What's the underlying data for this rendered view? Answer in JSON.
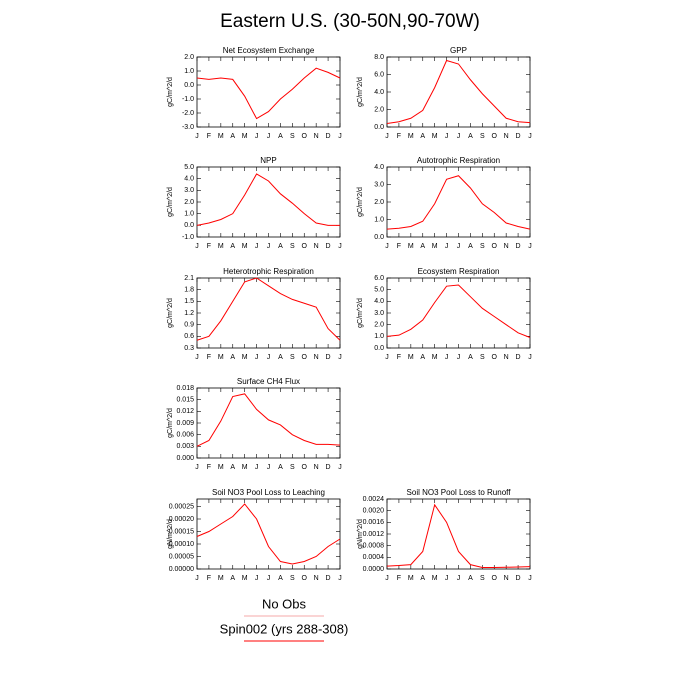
{
  "title": "Eastern U.S. (30-50N,90-70W)",
  "legend": [
    {
      "name": "No Obs",
      "color": "#f6a8a8"
    },
    {
      "name": "Spin002 (yrs 288-308)",
      "color": "#ff0000"
    }
  ],
  "chart_data": [
    {
      "type": "line",
      "title": "Net Ecosystem Exchange",
      "y_label": "gC/m^2/d",
      "categories": [
        "J",
        "F",
        "M",
        "A",
        "M",
        "J",
        "J",
        "A",
        "S",
        "O",
        "N",
        "D",
        "J"
      ],
      "series": [
        {
          "color": "#ff0000",
          "values": [
            0.5,
            0.4,
            0.5,
            0.4,
            -0.8,
            -2.4,
            -1.9,
            -1.0,
            -0.3,
            0.5,
            1.2,
            0.9,
            0.5
          ]
        }
      ],
      "ylim": [
        -3,
        2
      ],
      "yticks": [
        {
          "value": -3,
          "label": "-3.0"
        },
        {
          "value": -2,
          "label": "-2.0"
        },
        {
          "value": -1,
          "label": "-1.0"
        },
        {
          "value": 0,
          "label": "0.0"
        },
        {
          "value": 1,
          "label": "1.0"
        },
        {
          "value": 2,
          "label": "2.0"
        }
      ]
    },
    {
      "type": "line",
      "title": "GPP",
      "y_label": "gC/m^2/d",
      "categories": [
        "J",
        "F",
        "M",
        "A",
        "M",
        "J",
        "J",
        "A",
        "S",
        "O",
        "N",
        "D",
        "J"
      ],
      "series": [
        {
          "color": "#ff0000",
          "values": [
            0.4,
            0.6,
            1.0,
            1.9,
            4.5,
            7.6,
            7.2,
            5.4,
            3.8,
            2.4,
            1.0,
            0.6,
            0.5
          ]
        }
      ],
      "ylim": [
        0,
        8
      ],
      "yticks": [
        {
          "value": 0,
          "label": "0.0"
        },
        {
          "value": 2,
          "label": "2.0"
        },
        {
          "value": 4,
          "label": "4.0"
        },
        {
          "value": 6,
          "label": "6.0"
        },
        {
          "value": 8,
          "label": "8.0"
        }
      ]
    },
    {
      "type": "line",
      "title": "NPP",
      "y_label": "gC/m^2/d",
      "categories": [
        "J",
        "F",
        "M",
        "A",
        "M",
        "J",
        "J",
        "A",
        "S",
        "O",
        "N",
        "D",
        "J"
      ],
      "series": [
        {
          "color": "#ff0000",
          "values": [
            0.0,
            0.2,
            0.5,
            1.0,
            2.6,
            4.4,
            3.8,
            2.7,
            1.9,
            1.0,
            0.2,
            0.0,
            0.0
          ]
        }
      ],
      "ylim": [
        -1,
        5
      ],
      "yticks": [
        {
          "value": -1,
          "label": "-1.0"
        },
        {
          "value": 0,
          "label": "0.0"
        },
        {
          "value": 1,
          "label": "1.0"
        },
        {
          "value": 2,
          "label": "2.0"
        },
        {
          "value": 3,
          "label": "3.0"
        },
        {
          "value": 4,
          "label": "4.0"
        },
        {
          "value": 5,
          "label": "5.0"
        }
      ]
    },
    {
      "type": "line",
      "title": "Autotrophic Respiration",
      "y_label": "gC/m^2/d",
      "categories": [
        "J",
        "F",
        "M",
        "A",
        "M",
        "J",
        "J",
        "A",
        "S",
        "O",
        "N",
        "D",
        "J"
      ],
      "series": [
        {
          "color": "#ff0000",
          "values": [
            0.45,
            0.5,
            0.6,
            0.9,
            1.9,
            3.3,
            3.5,
            2.8,
            1.9,
            1.4,
            0.8,
            0.6,
            0.45
          ]
        }
      ],
      "ylim": [
        0,
        4
      ],
      "yticks": [
        {
          "value": 0,
          "label": "0.0"
        },
        {
          "value": 1,
          "label": "1.0"
        },
        {
          "value": 2,
          "label": "2.0"
        },
        {
          "value": 3,
          "label": "3.0"
        },
        {
          "value": 4,
          "label": "4.0"
        }
      ]
    },
    {
      "type": "line",
      "title": "Heterotrophic Respiration",
      "y_label": "gC/m^2/d",
      "categories": [
        "J",
        "F",
        "M",
        "A",
        "M",
        "J",
        "J",
        "A",
        "S",
        "O",
        "N",
        "D",
        "J"
      ],
      "series": [
        {
          "color": "#ff0000",
          "values": [
            0.5,
            0.6,
            1.0,
            1.5,
            2.0,
            2.1,
            1.9,
            1.7,
            1.55,
            1.45,
            1.35,
            0.8,
            0.5
          ]
        }
      ],
      "ylim": [
        0.3,
        2.1
      ],
      "yticks": [
        0.3,
        0.6,
        0.9,
        1.2,
        1.5,
        1.8,
        2.1
      ]
    },
    {
      "type": "line",
      "title": "Ecosystem Respiration",
      "y_label": "gC/m^2/d",
      "categories": [
        "J",
        "F",
        "M",
        "A",
        "M",
        "J",
        "J",
        "A",
        "S",
        "O",
        "N",
        "D",
        "J"
      ],
      "series": [
        {
          "color": "#ff0000",
          "values": [
            1.0,
            1.1,
            1.6,
            2.4,
            3.9,
            5.3,
            5.4,
            4.4,
            3.4,
            2.7,
            2.0,
            1.3,
            0.9
          ]
        }
      ],
      "ylim": [
        0,
        6
      ],
      "yticks": [
        {
          "value": 0,
          "label": "0.0"
        },
        {
          "value": 1,
          "label": "1.0"
        },
        {
          "value": 2,
          "label": "2.0"
        },
        {
          "value": 3,
          "label": "3.0"
        },
        {
          "value": 4,
          "label": "4.0"
        },
        {
          "value": 5,
          "label": "5.0"
        },
        {
          "value": 6,
          "label": "6.0"
        }
      ]
    },
    {
      "type": "line",
      "title": "Surface CH4 Flux",
      "y_label": "gC/m^2/d",
      "categories": [
        "J",
        "F",
        "M",
        "A",
        "M",
        "J",
        "J",
        "A",
        "S",
        "O",
        "N",
        "D",
        "J"
      ],
      "series": [
        {
          "color": "#ff0000",
          "values": [
            0.003,
            0.0045,
            0.0095,
            0.0158,
            0.0165,
            0.0125,
            0.0098,
            0.0085,
            0.006,
            0.0045,
            0.0035,
            0.0035,
            0.0033
          ]
        }
      ],
      "ylim": [
        0,
        0.018
      ],
      "yticks": [
        {
          "value": 0,
          "label": "0.000"
        },
        0.003,
        0.006,
        0.009,
        0.012,
        0.015,
        0.018
      ]
    },
    {
      "type": "line",
      "title": "Soil NO3 Pool Loss to Leaching",
      "y_label": "gN/m^2/d",
      "categories": [
        "J",
        "F",
        "M",
        "A",
        "M",
        "J",
        "J",
        "A",
        "S",
        "O",
        "N",
        "D",
        "J"
      ],
      "series": [
        {
          "color": "#ff0000",
          "values": [
            0.00013,
            0.00015,
            0.00018,
            0.00021,
            0.00026,
            0.0002,
            9e-05,
            3e-05,
            2e-05,
            3e-05,
            5e-05,
            9e-05,
            0.00012
          ]
        }
      ],
      "ylim": [
        0,
        0.00028
      ],
      "yticks": [
        {
          "value": 0,
          "label": "0.00000"
        },
        5e-05,
        {
          "value": 0.0001,
          "label": "0.00010"
        },
        0.00015,
        {
          "value": 0.0002,
          "label": "0.00020"
        },
        0.00025
      ]
    },
    {
      "type": "line",
      "title": "Soil NO3 Pool Loss to Runoff",
      "y_label": "gN/m^2/d",
      "categories": [
        "J",
        "F",
        "M",
        "A",
        "M",
        "J",
        "J",
        "A",
        "S",
        "O",
        "N",
        "D",
        "J"
      ],
      "series": [
        {
          "color": "#ff0000",
          "values": [
            0.0001,
            0.00012,
            0.00015,
            0.0006,
            0.0022,
            0.0016,
            0.0006,
            0.00015,
            5e-05,
            5e-05,
            6e-05,
            7e-05,
            8e-05
          ]
        }
      ],
      "ylim": [
        0,
        0.0024
      ],
      "yticks": [
        {
          "value": 0,
          "label": "0.0000"
        },
        0.0004,
        0.0008,
        0.0012,
        0.0016,
        {
          "value": 0.002,
          "label": "0.0020"
        },
        0.0024
      ]
    }
  ]
}
